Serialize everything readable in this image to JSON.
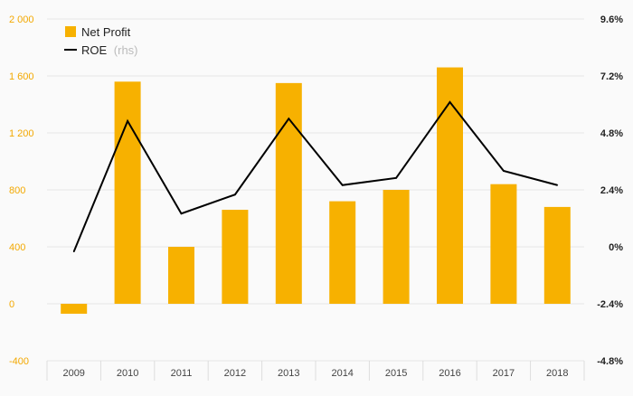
{
  "chart_data": {
    "type": "bar",
    "categories": [
      "2009",
      "2010",
      "2011",
      "2012",
      "2013",
      "2014",
      "2015",
      "2016",
      "2017",
      "2018"
    ],
    "series": [
      {
        "name": "Net Profit",
        "type": "bar",
        "axis": "left",
        "values": [
          -70,
          1560,
          400,
          660,
          1550,
          720,
          800,
          1660,
          840,
          680
        ]
      },
      {
        "name": "ROE",
        "name_suffix": "(rhs)",
        "type": "line",
        "axis": "right",
        "values": [
          -0.2,
          5.3,
          1.4,
          2.2,
          5.4,
          2.6,
          2.9,
          6.1,
          3.2,
          2.6
        ]
      }
    ],
    "y_left": {
      "lim": [
        -400,
        2000
      ],
      "ticks": [
        -400,
        0,
        400,
        800,
        1200,
        1600,
        2000
      ],
      "tick_labels": [
        "-400",
        "0",
        "400",
        "800",
        "1 200",
        "1 600",
        "2 000"
      ]
    },
    "y_right": {
      "lim": [
        -4.8,
        9.6
      ],
      "ticks": [
        -4.8,
        -2.4,
        0,
        2.4,
        4.8,
        7.2,
        9.6
      ],
      "tick_labels": [
        "-4.8%",
        "-2.4%",
        "0%",
        "2.4%",
        "4.8%",
        "7.2%",
        "9.6%"
      ]
    },
    "colors": {
      "bar": "#f7b100",
      "line": "#000000",
      "left_axis_text": "#f3a800",
      "grid": "#e6e6e6",
      "background": "#fafafa"
    },
    "grid": true,
    "legend_position": "top-left"
  }
}
